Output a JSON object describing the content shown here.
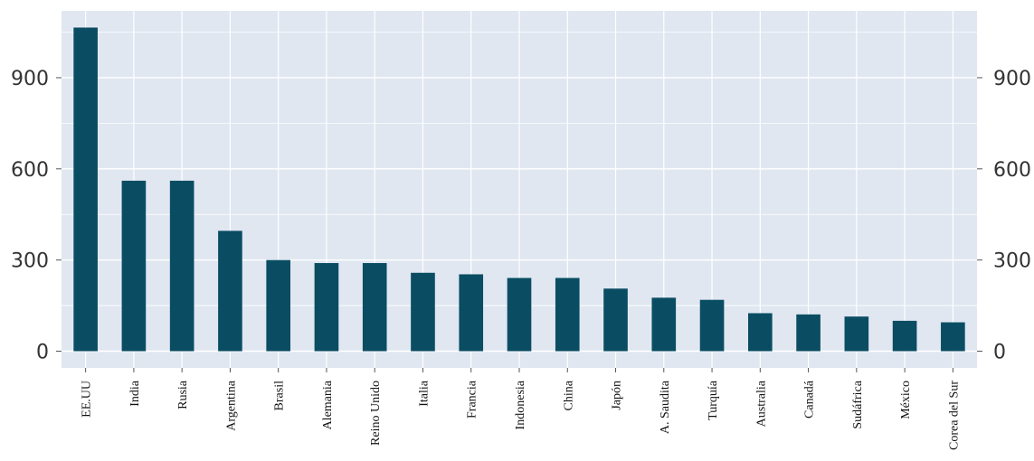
{
  "chart_data": {
    "type": "bar",
    "title": "",
    "xlabel": "",
    "ylabel": "",
    "categories": [
      "EE.UU",
      "India",
      "Rusia",
      "Argentina",
      "Brasil",
      "Alemania",
      "Reino Unido",
      "Italia",
      "Francia",
      "Indonesia",
      "China",
      "Japón",
      "A. Saudita",
      "Turquía",
      "Australia",
      "Canadá",
      "Sudáfrica",
      "México",
      "Corea del Sur"
    ],
    "values": [
      1065,
      561,
      561,
      396,
      300,
      290,
      290,
      258,
      253,
      241,
      241,
      206,
      176,
      169,
      125,
      121,
      114,
      100,
      95
    ],
    "ylim": [
      -55,
      1120
    ],
    "yticks": [
      0,
      300,
      600,
      900
    ],
    "ytick_labels": [
      "0",
      "300",
      "600",
      "900"
    ],
    "minor_yticks": [
      150,
      450,
      750,
      1050
    ],
    "secondary_y_axis": true,
    "grid": true,
    "legend": "none",
    "colors": {
      "bar": "#0a4d63",
      "plot_background": "#e0e7f1",
      "grid": "#ffffff",
      "tick_text": "#333333"
    }
  }
}
